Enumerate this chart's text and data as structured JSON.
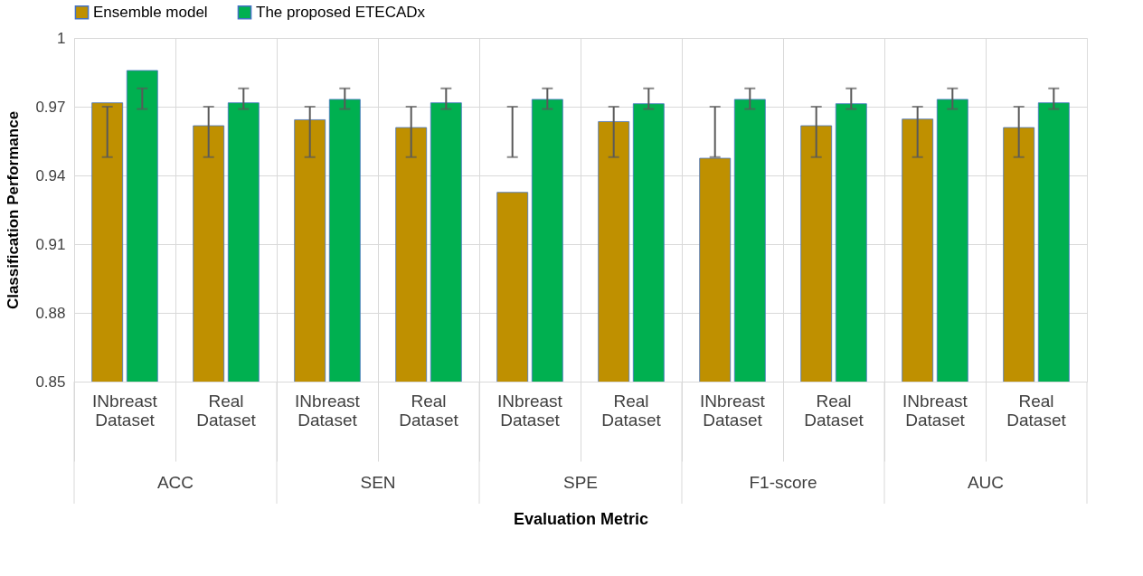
{
  "chart_data": {
    "type": "bar",
    "xlabel": "Evaluation Metric",
    "ylabel": "Classification Performance",
    "categories": [
      "INbreast Dataset",
      "Real Dataset",
      "INbreast Dataset",
      "Real Dataset",
      "INbreast Dataset",
      "Real Dataset",
      "INbreast Dataset",
      "Real Dataset",
      "INbreast Dataset",
      "Real Dataset"
    ],
    "series": [
      {
        "name": "Ensemble model",
        "color": "#bf9000",
        "values": [
          0.9717,
          0.9617,
          0.9643,
          0.9609,
          0.9326,
          0.9635,
          0.9475,
          0.9617,
          0.9646,
          0.9609
        ],
        "errors": [
          [
            0.948,
            0.97
          ],
          [
            0.948,
            0.97
          ],
          [
            0.948,
            0.97
          ],
          [
            0.948,
            0.97
          ],
          [
            0.948,
            0.97
          ],
          [
            0.948,
            0.97
          ],
          [
            0.948,
            0.97
          ],
          [
            0.948,
            0.97
          ],
          [
            0.948,
            0.97
          ],
          [
            0.948,
            0.97
          ]
        ]
      },
      {
        "name": "The proposed ETECADx",
        "color": "#00b050",
        "values": [
          0.9858,
          0.9717,
          0.9732,
          0.9717,
          0.9732,
          0.9713,
          0.9732,
          0.9713,
          0.9732,
          0.9717
        ],
        "errors": [
          [
            0.969,
            0.978
          ],
          [
            0.969,
            0.978
          ],
          [
            0.969,
            0.978
          ],
          [
            0.969,
            0.978
          ],
          [
            0.969,
            0.978
          ],
          [
            0.969,
            0.978
          ],
          [
            0.969,
            0.978
          ],
          [
            0.969,
            0.978
          ],
          [
            0.969,
            0.978
          ],
          [
            0.969,
            0.978
          ]
        ]
      }
    ],
    "annotations": [
      "ACC",
      "SEN",
      "SPE",
      "F1-score",
      "AUC"
    ],
    "ylim": [
      0.85,
      1
    ],
    "yticks": [
      0.85,
      0.88,
      0.91,
      0.94,
      0.97,
      {
        "value": 1,
        "label": "1"
      }
    ],
    "grid": true,
    "legend": "top"
  }
}
